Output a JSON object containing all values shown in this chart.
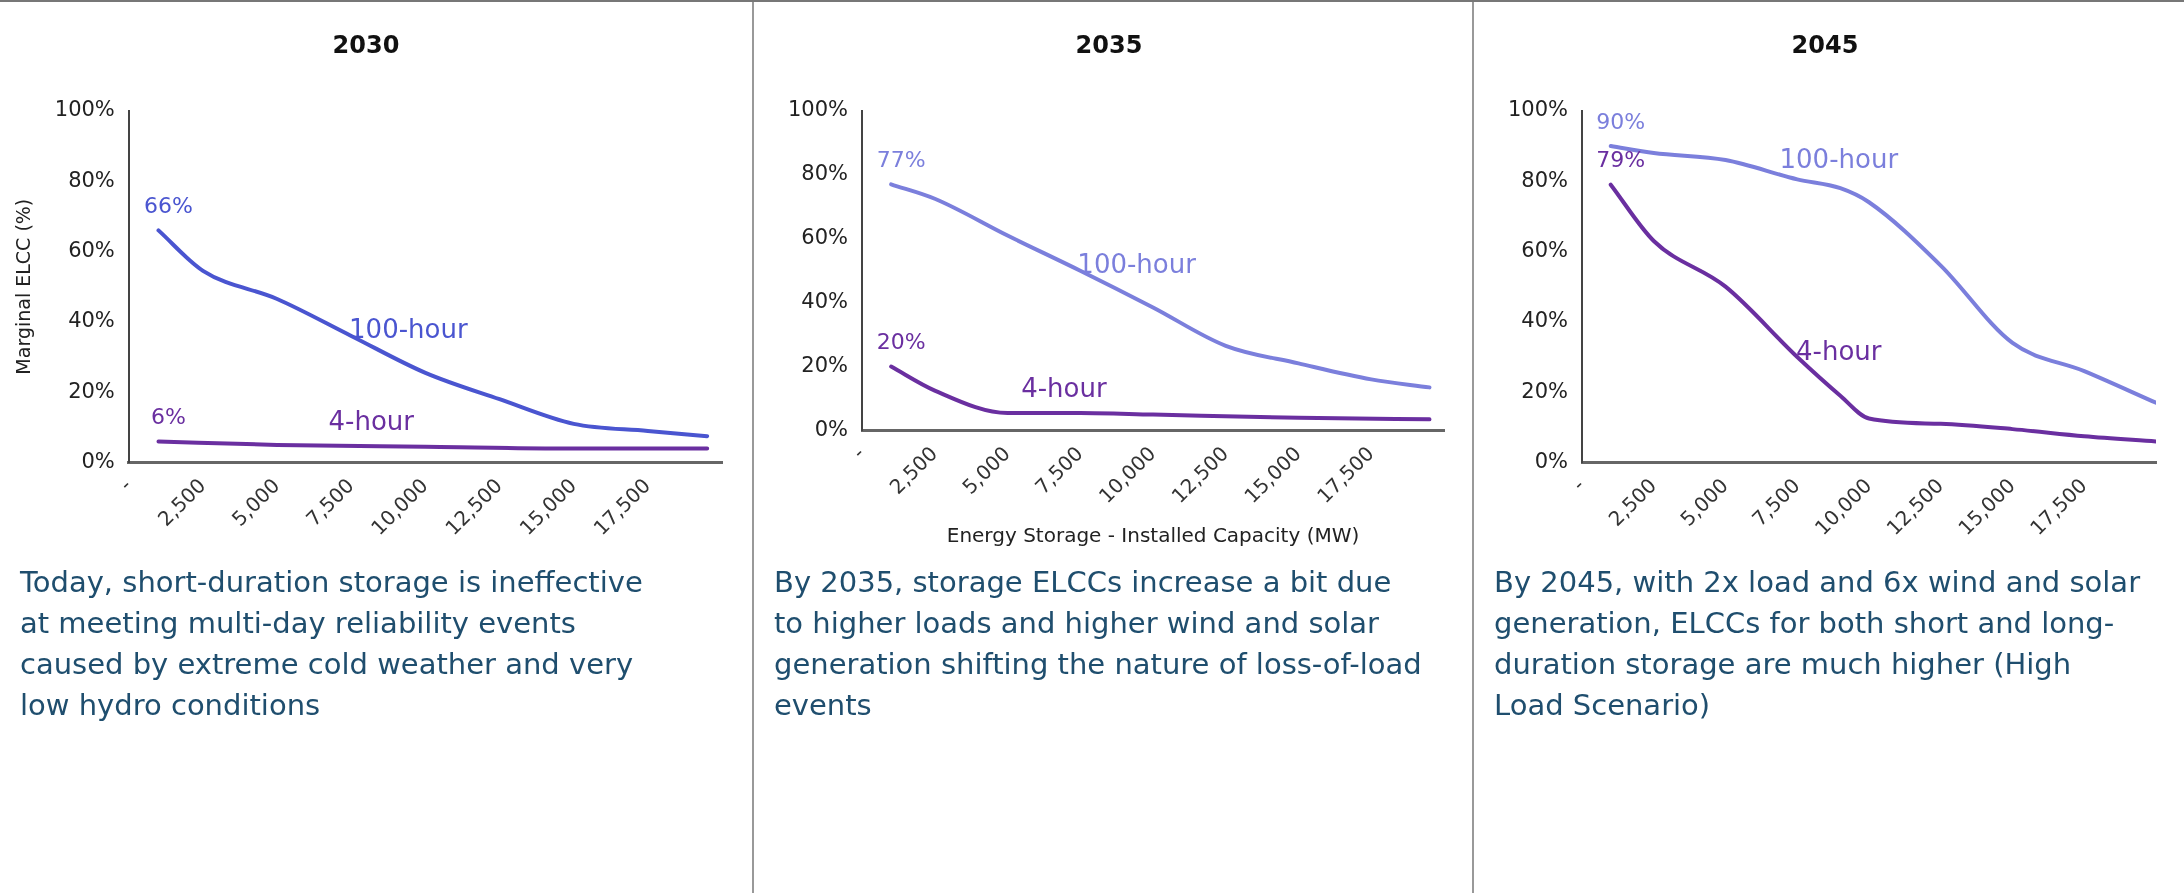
{
  "chart_data": [
    {
      "type": "line",
      "title": "2030",
      "ylabel": "Marginal ELCC (%)",
      "xlim": [
        0,
        20000
      ],
      "ylim": [
        0,
        100
      ],
      "xticks": [
        {
          "value": 0,
          "label": "-"
        },
        {
          "value": 2500,
          "label": "2,500"
        },
        {
          "value": 5000,
          "label": "5,000"
        },
        {
          "value": 7500,
          "label": "7,500"
        },
        {
          "value": 10000,
          "label": "10,000"
        },
        {
          "value": 12500,
          "label": "12,500"
        },
        {
          "value": 15000,
          "label": "15,000"
        },
        {
          "value": 17500,
          "label": "17,500"
        }
      ],
      "yticks": [
        {
          "value": 0,
          "label": "0%"
        },
        {
          "value": 20,
          "label": "20%"
        },
        {
          "value": 40,
          "label": "40%"
        },
        {
          "value": 60,
          "label": "60%"
        },
        {
          "value": 80,
          "label": "80%"
        },
        {
          "value": 100,
          "label": "100%"
        }
      ],
      "grid": false,
      "legend": false,
      "marker": "none",
      "line_style": "solid",
      "series": [
        {
          "name": "100-hour",
          "color": "#4a55d0",
          "x": [
            1000,
            2500,
            5000,
            7500,
            10000,
            12500,
            15000,
            17500,
            19500
          ],
          "values": [
            66,
            54.5,
            46.5,
            36,
            25.5,
            18,
            11,
            9,
            7.5
          ],
          "value_labels": [
            "66%",
            null,
            null,
            null,
            null,
            null,
            null,
            null,
            null
          ]
        },
        {
          "name": "4-hour",
          "color": "#6a2fa0",
          "x": [
            1000,
            5000,
            10000,
            15000,
            19500
          ],
          "values": [
            6,
            5,
            4.5,
            4,
            4
          ],
          "value_labels": [
            "6%",
            null,
            null,
            null,
            null
          ]
        }
      ],
      "annotations": [
        "Today, short-duration storage is ineffective at meeting multi-day reliability events caused by extreme cold weather and  very low hydro conditions"
      ]
    },
    {
      "type": "line",
      "title": "2035",
      "xlabel": "Energy Storage - Installed Capacity (MW)",
      "xlim": [
        0,
        20000
      ],
      "ylim": [
        0,
        100
      ],
      "xticks": [
        {
          "value": 0,
          "label": "-"
        },
        {
          "value": 2500,
          "label": "2,500"
        },
        {
          "value": 5000,
          "label": "5,000"
        },
        {
          "value": 7500,
          "label": "7,500"
        },
        {
          "value": 10000,
          "label": "10,000"
        },
        {
          "value": 12500,
          "label": "12,500"
        },
        {
          "value": 15000,
          "label": "15,000"
        },
        {
          "value": 17500,
          "label": "17,500"
        }
      ],
      "yticks": [
        {
          "value": 0,
          "label": "0%"
        },
        {
          "value": 20,
          "label": "20%"
        },
        {
          "value": 40,
          "label": "40%"
        },
        {
          "value": 60,
          "label": "60%"
        },
        {
          "value": 80,
          "label": "80%"
        },
        {
          "value": 100,
          "label": "100%"
        }
      ],
      "grid": false,
      "legend": false,
      "marker": "none",
      "line_style": "solid",
      "series": [
        {
          "name": "100-hour",
          "color": "#7b7fdc",
          "x": [
            1000,
            2500,
            5000,
            7500,
            10000,
            12500,
            15000,
            17500,
            19500
          ],
          "values": [
            77,
            72.5,
            61,
            50,
            38.5,
            26.5,
            21,
            16,
            13.5
          ],
          "value_labels": [
            "77%",
            null,
            null,
            null,
            null,
            null,
            null,
            null,
            null
          ]
        },
        {
          "name": "4-hour",
          "color": "#6a2fa0",
          "x": [
            1000,
            2500,
            5000,
            7500,
            10000,
            15000,
            19500
          ],
          "values": [
            20,
            12.5,
            5.5,
            5.5,
            5,
            4,
            3.5
          ],
          "value_labels": [
            "20%",
            null,
            null,
            null,
            null,
            null,
            null
          ]
        }
      ],
      "annotations": [
        "By 2035, storage ELCCs increase a bit due to higher loads and higher wind and solar generation shifting the nature of loss-of-load events"
      ]
    },
    {
      "type": "line",
      "title": "2045",
      "xlim": [
        0,
        20000
      ],
      "ylim": [
        0,
        100
      ],
      "xticks": [
        {
          "value": 0,
          "label": "-"
        },
        {
          "value": 2500,
          "label": "2,500"
        },
        {
          "value": 5000,
          "label": "5,000"
        },
        {
          "value": 7500,
          "label": "7,500"
        },
        {
          "value": 10000,
          "label": "10,000"
        },
        {
          "value": 12500,
          "label": "12,500"
        },
        {
          "value": 15000,
          "label": "15,000"
        },
        {
          "value": 17500,
          "label": "17,500"
        }
      ],
      "yticks": [
        {
          "value": 0,
          "label": "0%"
        },
        {
          "value": 20,
          "label": "20%"
        },
        {
          "value": 40,
          "label": "40%"
        },
        {
          "value": 60,
          "label": "60%"
        },
        {
          "value": 80,
          "label": "80%"
        },
        {
          "value": 100,
          "label": "100%"
        }
      ],
      "grid": false,
      "legend": false,
      "marker": "none",
      "line_style": "solid",
      "series": [
        {
          "name": "100-hour",
          "color": "#7b7fdc",
          "x": [
            1000,
            2500,
            5000,
            7500,
            9000,
            10000,
            12500,
            15000,
            17500,
            20000
          ],
          "values": [
            90,
            88,
            86,
            80.5,
            78,
            74,
            56,
            34,
            26,
            17
          ],
          "value_labels": [
            "90%",
            null,
            null,
            null,
            null,
            null,
            null,
            null,
            null,
            null
          ]
        },
        {
          "name": "4-hour",
          "color": "#6a2fa0",
          "x": [
            1000,
            2500,
            5000,
            7500,
            9000,
            10000,
            12500,
            15000,
            17500,
            20000
          ],
          "values": [
            79,
            63,
            50,
            30,
            19,
            12.5,
            11,
            9.5,
            7.5,
            6
          ],
          "value_labels": [
            "79%",
            null,
            null,
            null,
            null,
            null,
            null,
            null,
            null,
            null
          ]
        }
      ],
      "annotations": [
        "By 2045, with 2x load and 6x wind and solar generation, ELCCs for both short and long-duration storage are much higher (High Load Scenario)"
      ]
    }
  ]
}
